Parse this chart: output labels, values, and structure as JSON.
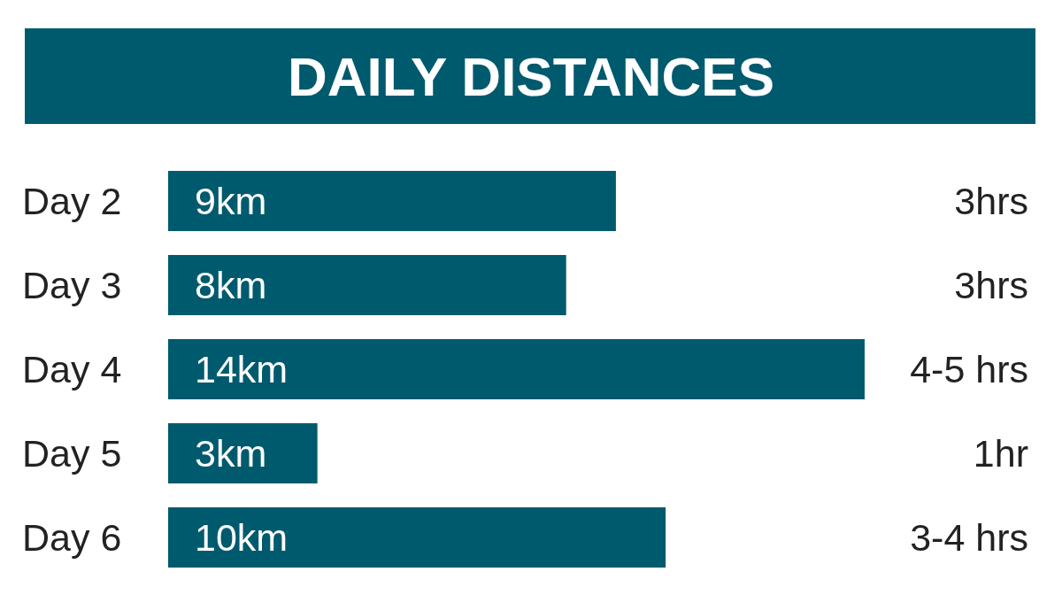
{
  "chart_data": {
    "type": "bar",
    "orientation": "horizontal",
    "title": "DAILY DISTANCES",
    "categories": [
      "Day 2",
      "Day 3",
      "Day 4",
      "Day 5",
      "Day 6"
    ],
    "values": [
      9,
      8,
      14,
      3,
      10
    ],
    "color": "#005a6e",
    "value_labels": [
      "9km",
      "8km",
      "14km",
      "3km",
      "10km"
    ],
    "annotations": [
      "3hrs",
      "3hrs",
      "4-5 hrs",
      "1hr",
      "3-4 hrs"
    ],
    "tick_labels": "y"
  }
}
